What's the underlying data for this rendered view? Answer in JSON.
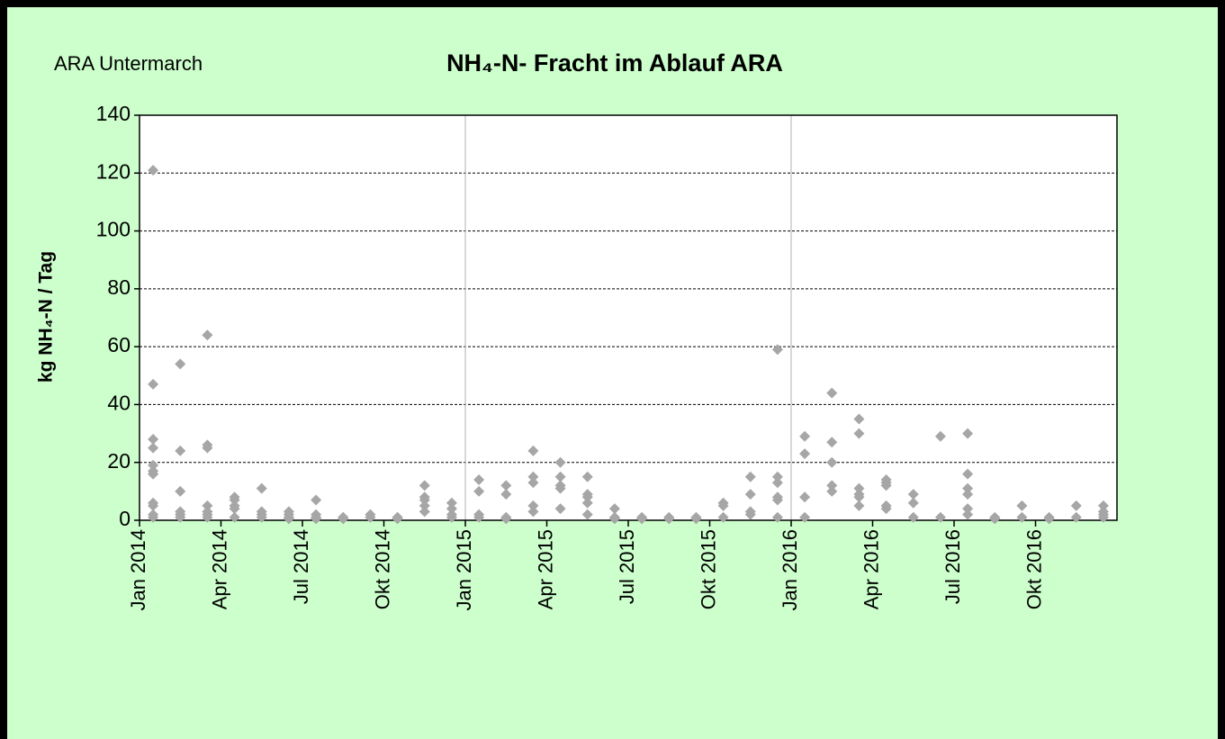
{
  "chart_data": {
    "type": "scatter",
    "title": "NH₄-N- Fracht im Ablauf ARA",
    "annotation": "ARA Untermarch",
    "y_label": "kg NH₄-N / Tag",
    "color": "#a6a6a6",
    "grid": true,
    "x_gridlines": [
      "2015-01",
      "2016-01"
    ],
    "xlim": [
      "2014-01",
      "2017-01"
    ],
    "xticks": [
      {
        "value": "2014-01",
        "label": "Jan 2014"
      },
      {
        "value": "2014-04",
        "label": "Apr 2014"
      },
      {
        "value": "2014-07",
        "label": "Jul 2014"
      },
      {
        "value": "2014-10",
        "label": "Okt 2014"
      },
      {
        "value": "2015-01",
        "label": "Jan 2015"
      },
      {
        "value": "2015-04",
        "label": "Apr 2015"
      },
      {
        "value": "2015-07",
        "label": "Jul 2015"
      },
      {
        "value": "2015-10",
        "label": "Okt 2015"
      },
      {
        "value": "2016-01",
        "label": "Jan 2016"
      },
      {
        "value": "2016-04",
        "label": "Apr 2016"
      },
      {
        "value": "2016-07",
        "label": "Jul 2016"
      },
      {
        "value": "2016-10",
        "label": "Okt 2016"
      }
    ],
    "ylim": [
      0,
      140
    ],
    "yticks": [
      0,
      20,
      40,
      60,
      80,
      100,
      120,
      140
    ],
    "x": [
      "2014-01",
      "2014-01",
      "2014-01",
      "2014-01",
      "2014-01",
      "2014-01",
      "2014-01",
      "2014-01",
      "2014-01",
      "2014-01",
      "2014-01",
      "2014-01",
      "2014-02",
      "2014-02",
      "2014-02",
      "2014-02",
      "2014-02",
      "2014-02",
      "2014-03",
      "2014-03",
      "2014-03",
      "2014-03",
      "2014-03",
      "2014-03",
      "2014-03",
      "2014-04",
      "2014-04",
      "2014-04",
      "2014-04",
      "2014-04",
      "2014-05",
      "2014-05",
      "2014-05",
      "2014-05",
      "2014-06",
      "2014-06",
      "2014-06",
      "2014-06",
      "2014-07",
      "2014-07",
      "2014-07",
      "2014-07",
      "2014-08",
      "2014-08",
      "2014-08",
      "2014-09",
      "2014-09",
      "2014-09",
      "2014-10",
      "2014-10",
      "2014-10",
      "2014-11",
      "2014-11",
      "2014-11",
      "2014-11",
      "2014-11",
      "2014-12",
      "2014-12",
      "2014-12",
      "2014-12",
      "2015-01",
      "2015-01",
      "2015-01",
      "2015-01",
      "2015-02",
      "2015-02",
      "2015-02",
      "2015-02",
      "2015-03",
      "2015-03",
      "2015-03",
      "2015-03",
      "2015-03",
      "2015-04",
      "2015-04",
      "2015-04",
      "2015-04",
      "2015-04",
      "2015-05",
      "2015-05",
      "2015-05",
      "2015-05",
      "2015-05",
      "2015-06",
      "2015-06",
      "2015-06",
      "2015-07",
      "2015-07",
      "2015-08",
      "2015-08",
      "2015-09",
      "2015-09",
      "2015-10",
      "2015-10",
      "2015-10",
      "2015-11",
      "2015-11",
      "2015-11",
      "2015-11",
      "2015-12",
      "2015-12",
      "2015-12",
      "2015-12",
      "2015-12",
      "2015-12",
      "2016-01",
      "2016-01",
      "2016-01",
      "2016-01",
      "2016-02",
      "2016-02",
      "2016-02",
      "2016-02",
      "2016-02",
      "2016-03",
      "2016-03",
      "2016-03",
      "2016-03",
      "2016-03",
      "2016-03",
      "2016-04",
      "2016-04",
      "2016-04",
      "2016-04",
      "2016-04",
      "2016-05",
      "2016-05",
      "2016-05",
      "2016-06",
      "2016-06",
      "2016-07",
      "2016-07",
      "2016-07",
      "2016-07",
      "2016-07",
      "2016-07",
      "2016-08",
      "2016-08",
      "2016-09",
      "2016-09",
      "2016-10",
      "2016-10",
      "2016-11",
      "2016-11",
      "2016-12",
      "2016-12",
      "2016-12",
      "2016-12"
    ],
    "values": [
      2,
      28,
      47,
      121,
      16,
      19,
      5,
      25,
      17,
      1,
      6,
      16,
      3,
      2,
      54,
      10,
      1,
      24,
      2,
      64,
      26,
      25,
      5,
      1,
      3,
      4,
      5,
      1,
      7,
      8,
      11,
      3,
      1,
      2,
      0.5,
      1,
      2,
      3,
      7,
      2,
      1,
      0.5,
      1,
      1,
      0.5,
      1,
      2,
      1,
      1,
      0.5,
      1,
      5,
      12,
      7,
      3,
      8,
      6,
      4,
      2,
      1,
      14,
      10,
      2,
      1,
      12,
      9,
      0.5,
      1,
      5,
      13,
      15,
      24,
      3,
      11,
      12,
      20,
      15,
      4,
      9,
      2,
      6,
      15,
      8,
      4,
      1,
      0.5,
      1,
      0.5,
      1,
      0.5,
      1,
      0.5,
      1,
      5,
      6,
      2,
      3,
      9,
      15,
      15,
      59,
      8,
      7,
      13,
      1,
      8,
      1,
      23,
      29,
      12,
      10,
      44,
      27,
      20,
      8,
      30,
      35,
      5,
      9,
      11,
      4,
      12,
      13,
      5,
      14,
      6,
      9,
      1,
      29,
      1,
      2,
      9,
      16,
      4,
      30,
      11,
      1,
      0.5,
      5,
      1,
      1,
      0.5,
      5,
      1,
      5,
      3,
      1,
      2
    ]
  }
}
